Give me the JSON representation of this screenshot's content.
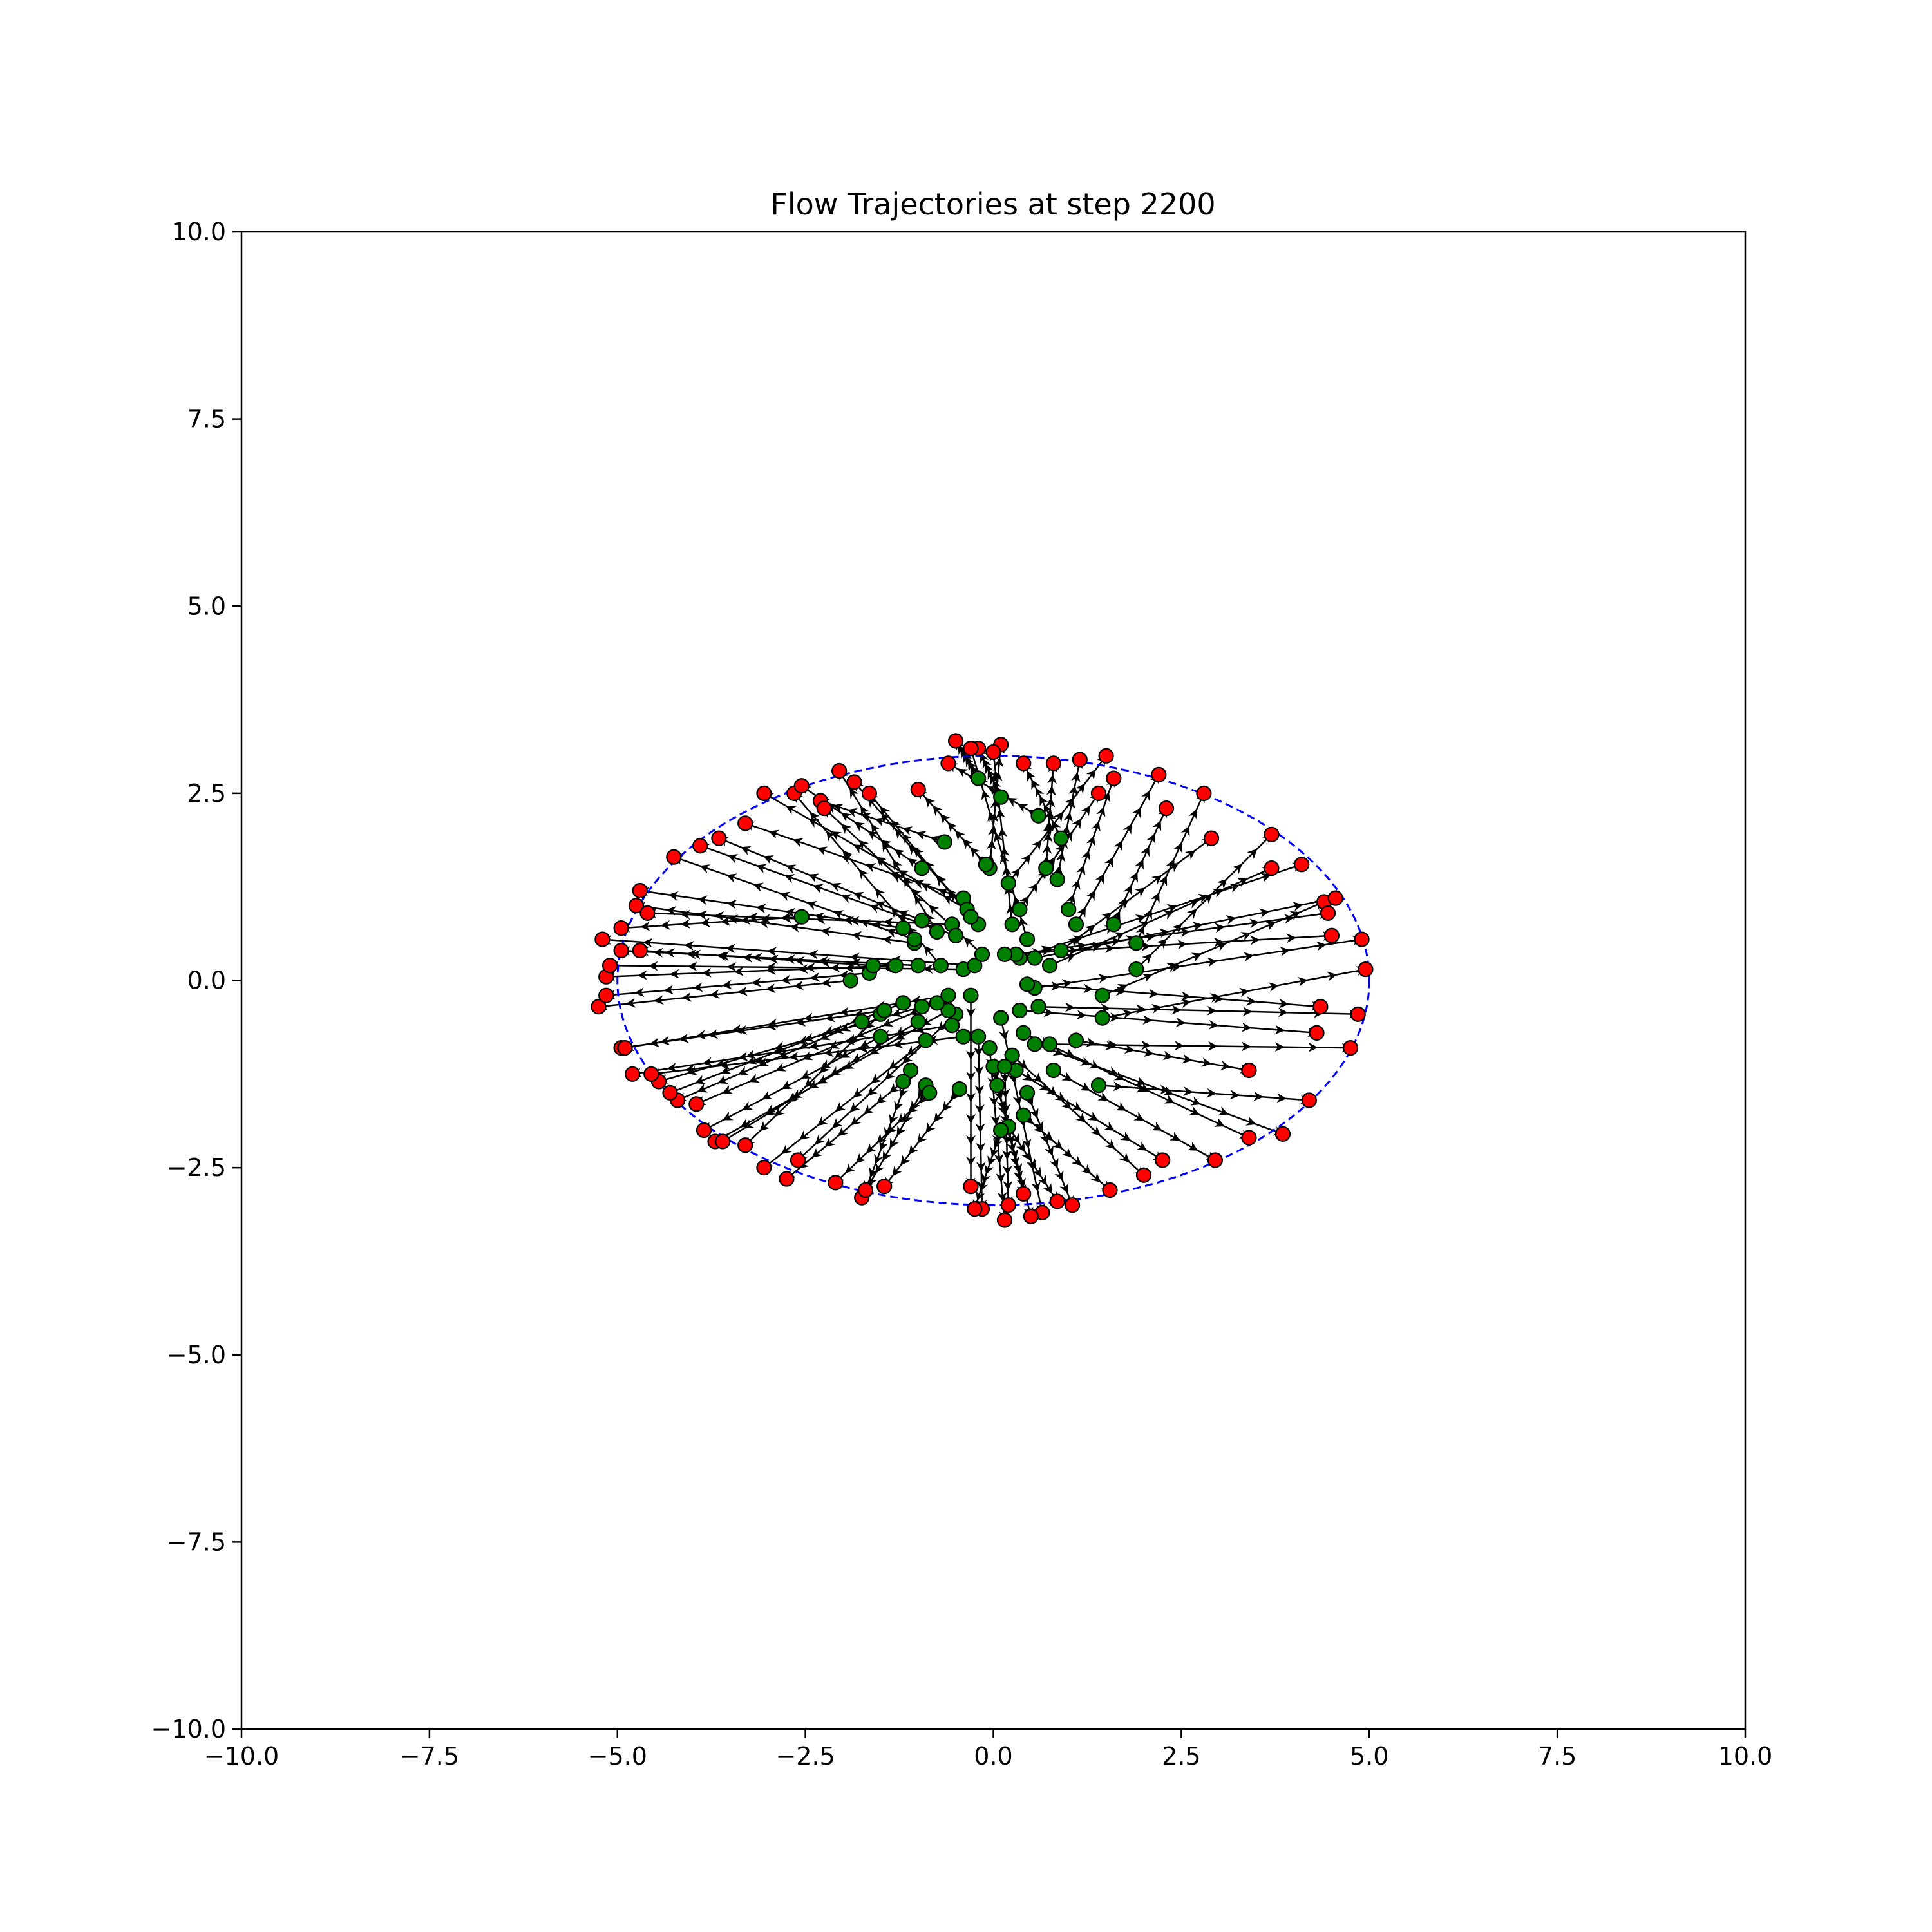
{
  "chart_data": {
    "type": "scatter",
    "title": "Flow Trajectories at step 2200",
    "xlabel": "",
    "ylabel": "",
    "xlim": [
      -10,
      10
    ],
    "ylim": [
      -10,
      10
    ],
    "x_ticks": [
      -10,
      -7.5,
      -5,
      -2.5,
      0,
      2.5,
      5,
      7.5,
      10
    ],
    "y_ticks": [
      -10,
      -7.5,
      -5,
      -2.5,
      0,
      2.5,
      5,
      7.5,
      10
    ],
    "x_tick_labels": [
      "−10.0",
      "−7.5",
      "−5.0",
      "−2.5",
      "0.0",
      "2.5",
      "5.0",
      "7.5",
      "10.0"
    ],
    "y_tick_labels": [
      "−10.0",
      "−7.5",
      "−5.0",
      "−2.5",
      "0.0",
      "2.5",
      "5.0",
      "7.5",
      "10.0"
    ],
    "grid": false,
    "legend": "none",
    "target_ellipse": {
      "center": [
        0,
        0
      ],
      "semi_axis_x": 5,
      "semi_axis_y": 3,
      "color": "#0000ff",
      "style": "dashed"
    },
    "colors": {
      "start": "#008000",
      "end": "#ff0000",
      "trajectory": "#000000"
    },
    "trajectories": [
      {
        "start": [
          -0.2,
          2.7
        ],
        "end": [
          -0.5,
          3.2
        ]
      },
      {
        "start": [
          0.1,
          2.45
        ],
        "end": [
          -0.2,
          3.1
        ]
      },
      {
        "start": [
          -0.05,
          1.5
        ],
        "end": [
          0.1,
          3.15
        ]
      },
      {
        "start": [
          0.6,
          2.2
        ],
        "end": [
          -0.6,
          2.9
        ]
      },
      {
        "start": [
          0.9,
          1.9
        ],
        "end": [
          0.4,
          2.9
        ]
      },
      {
        "start": [
          0.7,
          1.5
        ],
        "end": [
          0.8,
          2.9
        ]
      },
      {
        "start": [
          0.85,
          1.35
        ],
        "end": [
          1.15,
          2.95
        ]
      },
      {
        "start": [
          0.2,
          1.3
        ],
        "end": [
          1.5,
          3.0
        ]
      },
      {
        "start": [
          1.0,
          0.95
        ],
        "end": [
          1.6,
          2.7
        ]
      },
      {
        "start": [
          0.35,
          0.95
        ],
        "end": [
          1.4,
          2.5
        ]
      },
      {
        "start": [
          1.1,
          0.75
        ],
        "end": [
          2.2,
          2.75
        ]
      },
      {
        "start": [
          1.6,
          0.75
        ],
        "end": [
          2.3,
          2.3
        ]
      },
      {
        "start": [
          1.9,
          0.5
        ],
        "end": [
          2.8,
          2.5
        ]
      },
      {
        "start": [
          0.9,
          0.4
        ],
        "end": [
          2.9,
          1.9
        ]
      },
      {
        "start": [
          1.9,
          0.15
        ],
        "end": [
          3.7,
          1.95
        ]
      },
      {
        "start": [
          0.75,
          0.2
        ],
        "end": [
          3.7,
          1.5
        ]
      },
      {
        "start": [
          0.35,
          0.3
        ],
        "end": [
          4.1,
          1.55
        ]
      },
      {
        "start": [
          1.45,
          -0.2
        ],
        "end": [
          4.4,
          1.05
        ]
      },
      {
        "start": [
          0.55,
          0.3
        ],
        "end": [
          4.55,
          1.1
        ]
      },
      {
        "start": [
          0.3,
          0.35
        ],
        "end": [
          4.45,
          0.9
        ]
      },
      {
        "start": [
          0.15,
          0.35
        ],
        "end": [
          4.5,
          0.6
        ]
      },
      {
        "start": [
          0.55,
          -0.1
        ],
        "end": [
          4.9,
          0.55
        ]
      },
      {
        "start": [
          1.45,
          -0.5
        ],
        "end": [
          4.95,
          0.15
        ]
      },
      {
        "start": [
          0.45,
          -0.05
        ],
        "end": [
          4.35,
          -0.35
        ]
      },
      {
        "start": [
          0.6,
          -0.35
        ],
        "end": [
          4.85,
          -0.45
        ]
      },
      {
        "start": [
          0.35,
          -0.4
        ],
        "end": [
          4.3,
          -0.7
        ]
      },
      {
        "start": [
          0.75,
          -0.85
        ],
        "end": [
          4.75,
          -0.9
        ]
      },
      {
        "start": [
          1.1,
          -0.8
        ],
        "end": [
          3.4,
          -1.2
        ]
      },
      {
        "start": [
          1.4,
          -1.4
        ],
        "end": [
          4.2,
          -1.6
        ]
      },
      {
        "start": [
          0.55,
          -0.85
        ],
        "end": [
          3.85,
          -2.05
        ]
      },
      {
        "start": [
          0.4,
          -0.7
        ],
        "end": [
          3.4,
          -2.1
        ]
      },
      {
        "start": [
          0.8,
          -1.2
        ],
        "end": [
          2.95,
          -2.4
        ]
      },
      {
        "start": [
          0.3,
          -1.2
        ],
        "end": [
          2.25,
          -2.4
        ]
      },
      {
        "start": [
          0.25,
          -1.0
        ],
        "end": [
          2.0,
          -2.6
        ]
      },
      {
        "start": [
          0.4,
          -1.8
        ],
        "end": [
          1.55,
          -2.8
        ]
      },
      {
        "start": [
          0.45,
          -1.5
        ],
        "end": [
          1.05,
          -3.0
        ]
      },
      {
        "start": [
          0.2,
          -1.95
        ],
        "end": [
          0.85,
          -2.95
        ]
      },
      {
        "start": [
          0.1,
          -0.5
        ],
        "end": [
          0.65,
          -3.1
        ]
      },
      {
        "start": [
          0.05,
          -1.4
        ],
        "end": [
          0.5,
          -3.15
        ]
      },
      {
        "start": [
          0.0,
          -1.15
        ],
        "end": [
          0.4,
          -2.85
        ]
      },
      {
        "start": [
          -0.05,
          -0.9
        ],
        "end": [
          0.15,
          -3.2
        ]
      },
      {
        "start": [
          0.15,
          -1.15
        ],
        "end": [
          0.2,
          -3.0
        ]
      },
      {
        "start": [
          -0.2,
          -0.75
        ],
        "end": [
          -0.15,
          -3.05
        ]
      },
      {
        "start": [
          0.1,
          -2.0
        ],
        "end": [
          -0.25,
          -3.05
        ]
      },
      {
        "start": [
          -0.3,
          -0.2
        ],
        "end": [
          -0.3,
          -2.75
        ]
      },
      {
        "start": [
          -0.45,
          -1.45
        ],
        "end": [
          -1.45,
          -2.75
        ]
      },
      {
        "start": [
          -0.9,
          -1.4
        ],
        "end": [
          -1.75,
          -2.9
        ]
      },
      {
        "start": [
          -1.1,
          -1.2
        ],
        "end": [
          -1.7,
          -2.8
        ]
      },
      {
        "start": [
          -0.85,
          -1.5
        ],
        "end": [
          -2.1,
          -2.7
        ]
      },
      {
        "start": [
          -0.5,
          -0.45
        ],
        "end": [
          -2.6,
          -2.4
        ]
      },
      {
        "start": [
          -1.2,
          -1.35
        ],
        "end": [
          -2.75,
          -2.65
        ]
      },
      {
        "start": [
          -0.9,
          -0.8
        ],
        "end": [
          -3.05,
          -2.5
        ]
      },
      {
        "start": [
          -1.5,
          -0.45
        ],
        "end": [
          -3.3,
          -2.2
        ]
      },
      {
        "start": [
          -0.6,
          -0.4
        ],
        "end": [
          -3.7,
          -2.15
        ]
      },
      {
        "start": [
          -1.0,
          -0.55
        ],
        "end": [
          -3.6,
          -2.15
        ]
      },
      {
        "start": [
          -1.5,
          -0.75
        ],
        "end": [
          -3.85,
          -2.0
        ]
      },
      {
        "start": [
          -0.75,
          -0.3
        ],
        "end": [
          -3.95,
          -1.65
        ]
      },
      {
        "start": [
          -1.75,
          -0.55
        ],
        "end": [
          -4.2,
          -1.6
        ]
      },
      {
        "start": [
          -1.2,
          -0.3
        ],
        "end": [
          -4.3,
          -1.5
        ]
      },
      {
        "start": [
          -0.95,
          -0.35
        ],
        "end": [
          -4.45,
          -1.35
        ]
      },
      {
        "start": [
          -0.4,
          -0.75
        ],
        "end": [
          -4.55,
          -1.25
        ]
      },
      {
        "start": [
          -0.55,
          -0.6
        ],
        "end": [
          -4.8,
          -1.25
        ]
      },
      {
        "start": [
          -1.45,
          -0.4
        ],
        "end": [
          -4.95,
          -0.9
        ]
      },
      {
        "start": [
          -0.6,
          -0.2
        ],
        "end": [
          -4.9,
          -0.9
        ]
      },
      {
        "start": [
          -1.9,
          0.0
        ],
        "end": [
          -5.25,
          -0.35
        ]
      },
      {
        "start": [
          -1.65,
          0.1
        ],
        "end": [
          -5.15,
          -0.2
        ]
      },
      {
        "start": [
          -1.3,
          0.2
        ],
        "end": [
          -5.15,
          0.05
        ]
      },
      {
        "start": [
          -0.4,
          0.15
        ],
        "end": [
          -5.1,
          0.2
        ]
      },
      {
        "start": [
          -1.0,
          0.2
        ],
        "end": [
          -4.95,
          0.4
        ]
      },
      {
        "start": [
          -1.6,
          0.2
        ],
        "end": [
          -4.7,
          0.4
        ]
      },
      {
        "start": [
          -0.25,
          0.2
        ],
        "end": [
          -5.2,
          0.55
        ]
      },
      {
        "start": [
          -2.55,
          0.85
        ],
        "end": [
          -4.95,
          0.7
        ]
      },
      {
        "start": [
          -1.05,
          0.5
        ],
        "end": [
          -4.75,
          1.0
        ]
      },
      {
        "start": [
          -1.2,
          0.7
        ],
        "end": [
          -4.7,
          1.2
        ]
      },
      {
        "start": [
          -0.55,
          0.75
        ],
        "end": [
          -4.6,
          0.9
        ]
      },
      {
        "start": [
          -1.05,
          0.55
        ],
        "end": [
          -4.25,
          1.65
        ]
      },
      {
        "start": [
          -0.5,
          0.6
        ],
        "end": [
          -3.9,
          1.8
        ]
      },
      {
        "start": [
          -0.95,
          0.8
        ],
        "end": [
          -3.65,
          1.9
        ]
      },
      {
        "start": [
          -0.4,
          1.1
        ],
        "end": [
          -3.3,
          2.1
        ]
      },
      {
        "start": [
          -0.35,
          0.95
        ],
        "end": [
          -3.05,
          2.5
        ]
      },
      {
        "start": [
          -0.7,
          0.2
        ],
        "end": [
          -2.65,
          2.5
        ]
      },
      {
        "start": [
          -0.95,
          1.5
        ],
        "end": [
          -2.55,
          2.6
        ]
      },
      {
        "start": [
          -0.65,
          1.85
        ],
        "end": [
          -2.3,
          2.4
        ]
      },
      {
        "start": [
          -0.15,
          0.35
        ],
        "end": [
          -2.25,
          2.3
        ]
      },
      {
        "start": [
          -0.75,
          0.65
        ],
        "end": [
          -2.05,
          2.8
        ]
      },
      {
        "start": [
          -0.2,
          0.75
        ],
        "end": [
          -1.85,
          2.65
        ]
      },
      {
        "start": [
          -0.3,
          0.85
        ],
        "end": [
          -1.65,
          2.5
        ]
      },
      {
        "start": [
          -0.1,
          1.55
        ],
        "end": [
          -1.0,
          2.55
        ]
      },
      {
        "start": [
          0.25,
          0.75
        ],
        "end": [
          0.0,
          3.05
        ]
      },
      {
        "start": [
          0.45,
          0.55
        ],
        "end": [
          -0.3,
          3.1
        ]
      }
    ]
  }
}
